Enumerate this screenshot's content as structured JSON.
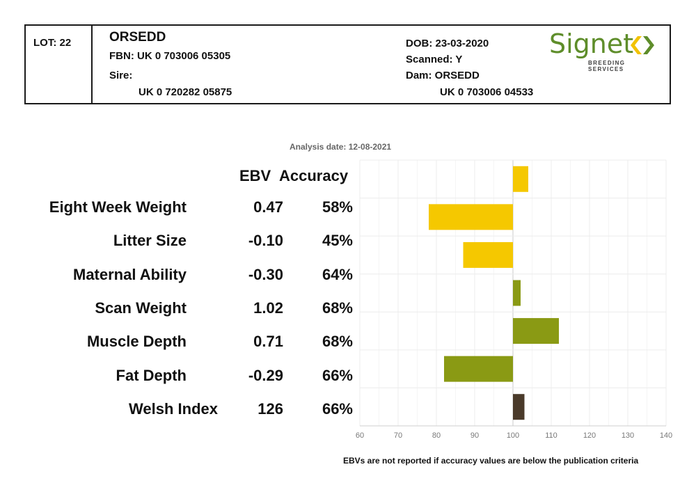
{
  "header": {
    "lot": "LOT: 22",
    "name": "ORSEDD",
    "fbn": "FBN: UK 0 703006 05305",
    "sire_label": "Sire:",
    "sire_id": "UK 0 720282 05875",
    "dob": "DOB: 23-03-2020",
    "scanned": "Scanned: Y",
    "dam": "Dam: ORSEDD",
    "dam_id": "UK 0 703006 04533"
  },
  "logo": {
    "word": "Signet",
    "sub": "BREEDING SERVICES",
    "colors": {
      "text": "#5e8d2a",
      "chevron_left": "#f2c200",
      "chevron_right": "#5e8d2a"
    }
  },
  "analysis_date": "Analysis date: 12-08-2021",
  "column_headers": {
    "ebv": "EBV",
    "accuracy": "Accuracy"
  },
  "footnote": "EBVs are not reported if accuracy values are below the publication criteria",
  "chart_data": {
    "type": "bar",
    "orientation": "horizontal",
    "categories": [
      "Eight Week Weight",
      "Litter Size",
      "Maternal Ability",
      "Scan Weight",
      "Muscle Depth",
      "Fat Depth",
      "Welsh Index"
    ],
    "ebv": [
      "0.47",
      "-0.10",
      "-0.30",
      "1.02",
      "0.71",
      "-0.29",
      "126"
    ],
    "accuracy": [
      "58%",
      "45%",
      "64%",
      "68%",
      "68%",
      "66%",
      "66%"
    ],
    "values": [
      104,
      78,
      87,
      102,
      112,
      82,
      103
    ],
    "baseline": 100,
    "colors": [
      "#f5c800",
      "#f5c800",
      "#f5c800",
      "#8a9a14",
      "#8a9a14",
      "#8a9a14",
      "#4a3a2a"
    ],
    "xlim": [
      60,
      140
    ],
    "xticks": [
      60,
      70,
      80,
      90,
      100,
      110,
      120,
      130,
      140
    ],
    "grid": true
  }
}
